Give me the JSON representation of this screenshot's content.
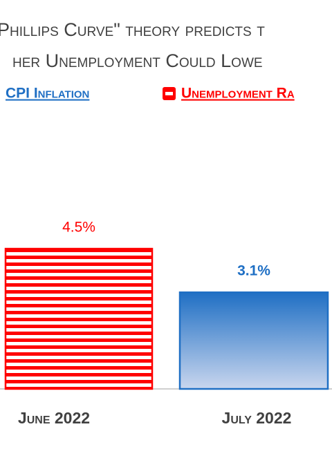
{
  "chart_data": {
    "type": "bar",
    "title": [
      "Phillips Curve\" theory predicts t",
      "her Unemployment Could Lowe"
    ],
    "categories": [
      "June 2022",
      "July 2022"
    ],
    "series": [
      {
        "name": "CPI Inflation",
        "color": "#1f6fc4",
        "values": [
          null,
          3.1
        ],
        "value_labels": [
          null,
          "3.1%"
        ]
      },
      {
        "name": "Unemployment Ra",
        "color": "#ff0000",
        "values": [
          4.5,
          null
        ],
        "value_labels": [
          "4.5%",
          null
        ]
      }
    ]
  }
}
